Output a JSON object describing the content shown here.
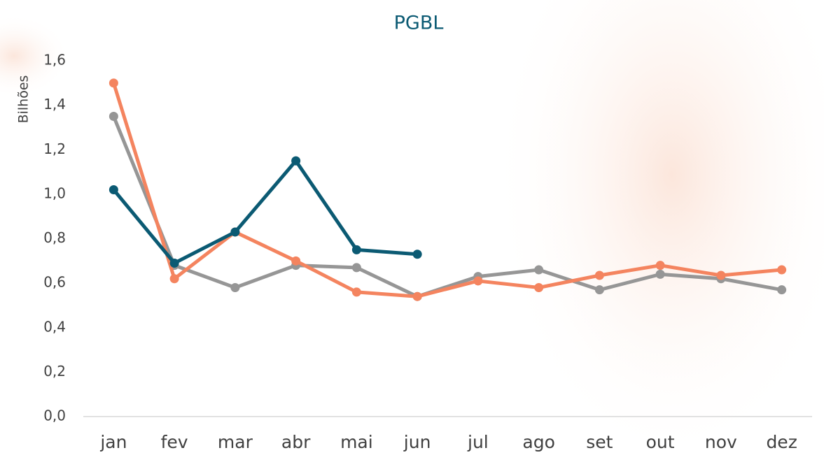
{
  "chart_data": {
    "type": "line",
    "title": "PGBL",
    "y_label": "Bilhões",
    "categories": [
      "jan",
      "fev",
      "mar",
      "abr",
      "mai",
      "jun",
      "jul",
      "ago",
      "set",
      "out",
      "nov",
      "dez"
    ],
    "series": [
      {
        "color": "#969696",
        "values": [
          1.35,
          0.68,
          0.58,
          0.68,
          0.67,
          0.54,
          0.63,
          0.66,
          0.57,
          0.64,
          0.62,
          0.57
        ]
      },
      {
        "color": "#f4845f",
        "values": [
          1.5,
          0.62,
          0.83,
          0.7,
          0.56,
          0.54,
          0.61,
          0.58,
          0.635,
          0.68,
          0.635,
          0.66
        ]
      },
      {
        "color": "#0b5a73",
        "values": [
          1.02,
          0.69,
          0.83,
          1.15,
          0.75,
          0.73,
          null,
          null,
          null,
          null,
          null,
          null
        ]
      }
    ],
    "ylim": [
      0,
      1.6
    ],
    "yticks": [
      {
        "value": 0,
        "label": "0,0"
      },
      {
        "value": 0.2,
        "label": "0,2"
      },
      {
        "value": 0.4,
        "label": "0,4"
      },
      {
        "value": 0.6,
        "label": "0,6"
      },
      {
        "value": 0.8,
        "label": "0,8"
      },
      {
        "value": 1.0,
        "label": "1,0"
      },
      {
        "value": 1.2,
        "label": "1,2"
      },
      {
        "value": 1.4,
        "label": "1,4"
      },
      {
        "value": 1.6,
        "label": "1,6"
      }
    ]
  }
}
